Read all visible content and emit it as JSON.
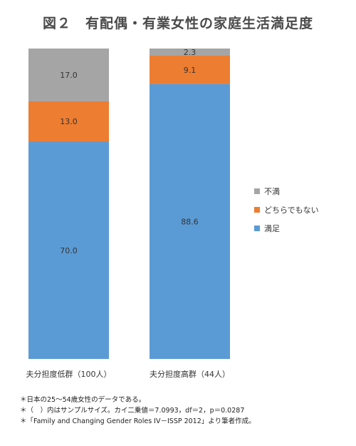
{
  "title": "図２　有配偶・有業女性の家庭生活満足度",
  "chart_data": {
    "type": "bar",
    "stacked": true,
    "percent": true,
    "categories": [
      "夫分担度低群（100人）",
      "夫分担度高群（44人）"
    ],
    "series": [
      {
        "name": "満足",
        "color": "#5b9bd5",
        "values": [
          70.0,
          88.6
        ]
      },
      {
        "name": "どちらでもない",
        "color": "#ed7d31",
        "values": [
          13.0,
          9.1
        ]
      },
      {
        "name": "不満",
        "color": "#a5a5a5",
        "values": [
          17.0,
          2.3
        ]
      }
    ],
    "legend_order": [
      "不満",
      "どちらでもない",
      "満足"
    ],
    "legend_position": "right",
    "ylim": [
      0,
      100
    ],
    "grid": false
  },
  "notes": [
    "＊日本の25～54歳女性のデータである。",
    "＊（　）内はサンプルサイズ。カイ二乗値＝7.0993，df＝2，p＝0.0287",
    "＊「Family and Changing Gender Roles IV－ISSP 2012」より筆者作成。"
  ]
}
